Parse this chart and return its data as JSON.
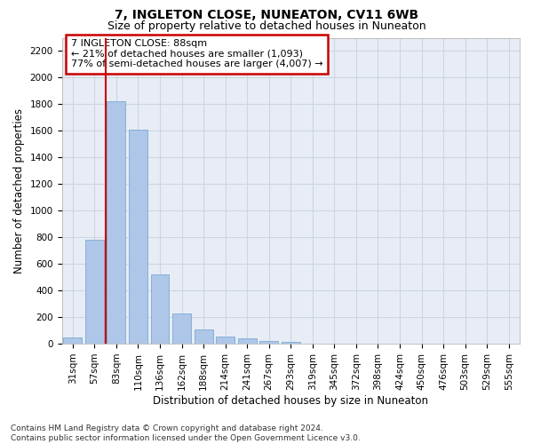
{
  "title": "7, INGLETON CLOSE, NUNEATON, CV11 6WB",
  "subtitle": "Size of property relative to detached houses in Nuneaton",
  "xlabel": "Distribution of detached houses by size in Nuneaton",
  "ylabel": "Number of detached properties",
  "categories": [
    "31sqm",
    "57sqm",
    "83sqm",
    "110sqm",
    "136sqm",
    "162sqm",
    "188sqm",
    "214sqm",
    "241sqm",
    "267sqm",
    "293sqm",
    "319sqm",
    "345sqm",
    "372sqm",
    "398sqm",
    "424sqm",
    "450sqm",
    "476sqm",
    "503sqm",
    "529sqm",
    "555sqm"
  ],
  "values": [
    50,
    780,
    1820,
    1610,
    520,
    230,
    108,
    55,
    40,
    22,
    15,
    0,
    0,
    0,
    0,
    0,
    0,
    0,
    0,
    0,
    0
  ],
  "bar_color": "#aec6e8",
  "bar_edge_color": "#7aabd4",
  "highlight_line_index": 2,
  "ylim": [
    0,
    2300
  ],
  "yticks": [
    0,
    200,
    400,
    600,
    800,
    1000,
    1200,
    1400,
    1600,
    1800,
    2000,
    2200
  ],
  "property_name": "7 INGLETON CLOSE: 88sqm",
  "annotation_line1": "← 21% of detached houses are smaller (1,093)",
  "annotation_line2": "77% of semi-detached houses are larger (4,007) →",
  "annotation_box_color": "#ffffff",
  "annotation_box_edge_color": "#cc0000",
  "grid_color": "#cdd5e3",
  "background_color": "#e8edf5",
  "footer_line1": "Contains HM Land Registry data © Crown copyright and database right 2024.",
  "footer_line2": "Contains public sector information licensed under the Open Government Licence v3.0.",
  "title_fontsize": 10,
  "subtitle_fontsize": 9,
  "xlabel_fontsize": 8.5,
  "ylabel_fontsize": 8.5,
  "tick_fontsize": 7.5,
  "annotation_fontsize": 8,
  "footer_fontsize": 6.5
}
